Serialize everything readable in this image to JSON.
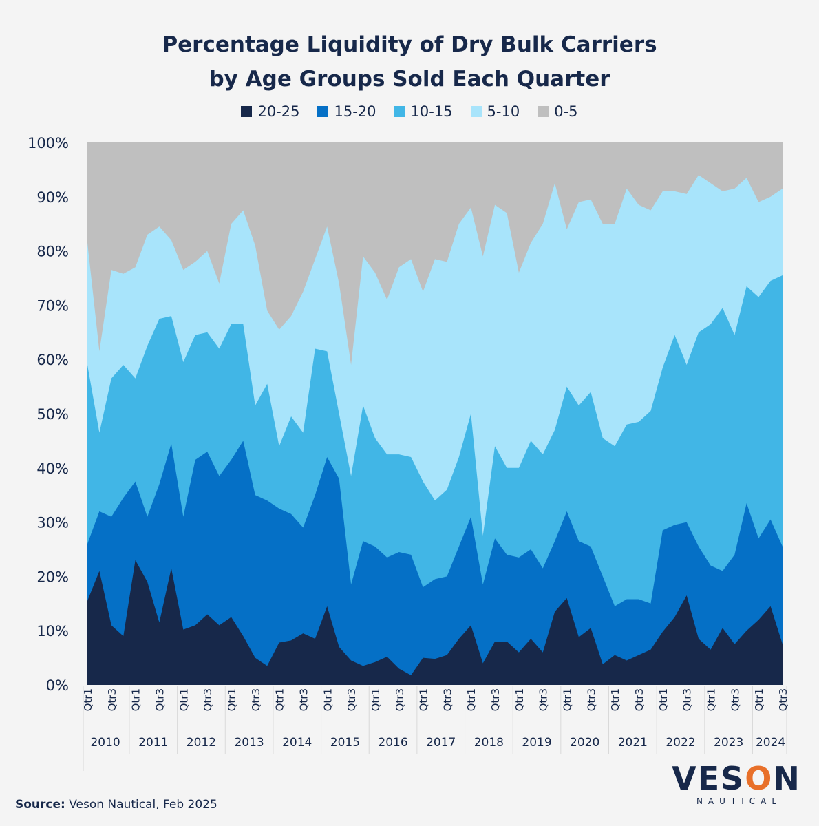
{
  "title": [
    "Percentage Liquidity of Dry Bulk Carriers",
    "by Age Groups Sold Each Quarter"
  ],
  "colors": {
    "20-25": "#17284a",
    "15-20": "#0570c6",
    "10-15": "#41b6e6",
    "5-10": "#a8e4fb",
    "0-5": "#bfbfbf"
  },
  "source": {
    "label": "Source:",
    "text": " Veson Nautical, Feb 2025"
  },
  "logo": {
    "word_start": "VES",
    "word_o": "O",
    "word_end": "N",
    "sub": "NAUTICAL"
  },
  "chart_data": {
    "type": "area",
    "stacked": true,
    "title": "Percentage Liquidity of Dry Bulk Carriers by Age Groups Sold Each Quarter",
    "ylim": [
      0,
      100
    ],
    "yticks": [
      "0%",
      "10%",
      "20%",
      "30%",
      "40%",
      "50%",
      "60%",
      "70%",
      "80%",
      "90%",
      "100%"
    ],
    "years": [
      "2010",
      "2011",
      "2012",
      "2013",
      "2014",
      "2015",
      "2016",
      "2017",
      "2018",
      "2019",
      "2020",
      "2021",
      "2022",
      "2023",
      "2024"
    ],
    "quarter_labels": [
      "Qtr1",
      "Qtr3"
    ],
    "legend": [
      "20-25",
      "15-20",
      "10-15",
      "5-10",
      "0-5"
    ],
    "series": [
      {
        "name": "20-25",
        "cumulative": [
          15.5,
          21,
          11,
          9,
          23,
          19,
          11.5,
          21.5,
          10.2,
          11,
          13,
          11,
          12.5,
          9,
          5,
          3.5,
          7.8,
          8.2,
          9.5,
          8.5,
          14.5,
          7,
          4.5,
          3.5,
          4.2,
          5.2,
          3,
          1.8,
          5,
          4.8,
          5.5,
          8.5,
          11,
          4,
          8,
          8,
          6,
          8.5,
          6,
          13.5,
          16,
          8.8,
          10.5,
          3.8,
          5.5,
          4.5,
          5.5,
          6.5,
          9.8,
          12.5,
          16.5,
          8.5,
          6.5,
          10.5,
          7.5,
          10,
          12,
          14.5,
          7.5
        ]
      },
      {
        "name": "15-20",
        "cumulative": [
          26,
          32,
          31,
          34.5,
          37.5,
          31,
          37,
          44.5,
          31,
          41.5,
          43,
          38.5,
          41.5,
          45,
          35,
          34,
          32.5,
          31.5,
          29,
          35,
          42,
          38,
          18.5,
          26.5,
          25.5,
          23.5,
          24.5,
          24,
          18,
          19.5,
          20,
          25.5,
          31,
          18.5,
          27,
          24,
          23.5,
          25,
          21.5,
          26.5,
          32,
          26.5,
          25.5,
          20,
          14.5,
          15.8,
          15.8,
          15,
          28.5,
          29.5,
          30,
          25.5,
          22,
          21,
          24,
          33.5,
          27,
          30.5,
          25.5
        ]
      },
      {
        "name": "10-15",
        "cumulative": [
          59,
          46.5,
          56.5,
          59,
          56.5,
          62.5,
          67.5,
          68,
          59.5,
          64.5,
          65,
          62,
          66.5,
          66.5,
          51.5,
          55.5,
          44,
          49.5,
          46.5,
          62,
          61.5,
          50,
          38.5,
          51.5,
          45.5,
          42.5,
          42.5,
          42,
          37.5,
          34,
          36,
          42,
          50,
          27.5,
          44,
          40,
          40,
          45,
          42.5,
          47,
          55,
          51.5,
          54,
          45.5,
          44,
          48,
          48.5,
          50.5,
          58.5,
          64.5,
          59,
          65,
          66.5,
          69.5,
          64.5,
          73.5,
          71.5,
          74.5,
          75.5
        ]
      },
      {
        "name": "5-10",
        "cumulative": [
          81.5,
          61.5,
          76.5,
          75.8,
          77,
          83,
          84.5,
          82,
          76.5,
          78,
          80,
          74,
          85,
          87.5,
          81,
          69,
          65.5,
          68,
          72.5,
          78.5,
          84.5,
          74,
          59,
          79,
          76,
          71,
          77,
          78.5,
          72.5,
          78.5,
          78,
          85,
          88,
          79,
          88.5,
          87,
          76,
          81.5,
          85,
          92.5,
          84,
          89,
          89.5,
          85,
          85,
          91.5,
          88.5,
          87.5,
          91,
          91,
          90.5,
          94,
          92.5,
          91,
          91.5,
          93.5,
          89,
          90,
          91.5
        ]
      },
      {
        "name": "0-5",
        "cumulative": [
          100,
          100,
          100,
          100,
          100,
          100,
          100,
          100,
          100,
          100,
          100,
          100,
          100,
          100,
          100,
          100,
          100,
          100,
          100,
          100,
          100,
          100,
          100,
          100,
          100,
          100,
          100,
          100,
          100,
          100,
          100,
          100,
          100,
          100,
          100,
          100,
          100,
          100,
          100,
          100,
          100,
          100,
          100,
          100,
          100,
          100,
          100,
          100,
          100,
          100,
          100,
          100,
          100,
          100,
          100,
          100,
          100,
          100,
          100
        ]
      }
    ],
    "x_count": 59,
    "x_start": "2010 Qtr1",
    "x_end": "2024 Qtr3"
  }
}
